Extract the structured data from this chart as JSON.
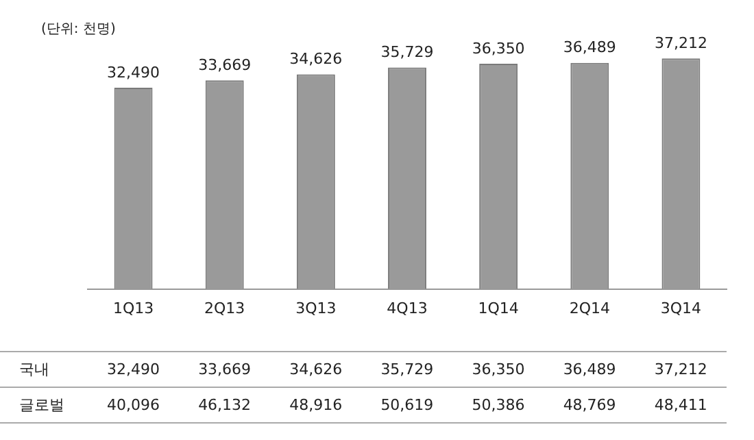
{
  "chart_data": [
    {
      "type": "bar",
      "annotations": [
        "(단위: 천명)"
      ],
      "categories": [
        "1Q13",
        "2Q13",
        "3Q13",
        "4Q13",
        "1Q14",
        "2Q14",
        "3Q14"
      ],
      "values": [
        32490,
        33669,
        34626,
        35729,
        36350,
        36489,
        37212
      ],
      "color": "#9a9a9a",
      "value_labels": [
        "32,490",
        "33,669",
        "34,626",
        "35,729",
        "36,350",
        "36,489",
        "37,212"
      ],
      "tick_labels": "x",
      "grid": false,
      "legend": false
    },
    {
      "type": "other",
      "annotations": [
        "국내",
        "32,490",
        "33,669",
        "34,626",
        "35,729",
        "36,350",
        "36,489",
        "37,212",
        "글로벌",
        "40,096",
        "46,132",
        "48,916",
        "50,619",
        "50,386",
        "48,769",
        "48,411"
      ]
    }
  ]
}
